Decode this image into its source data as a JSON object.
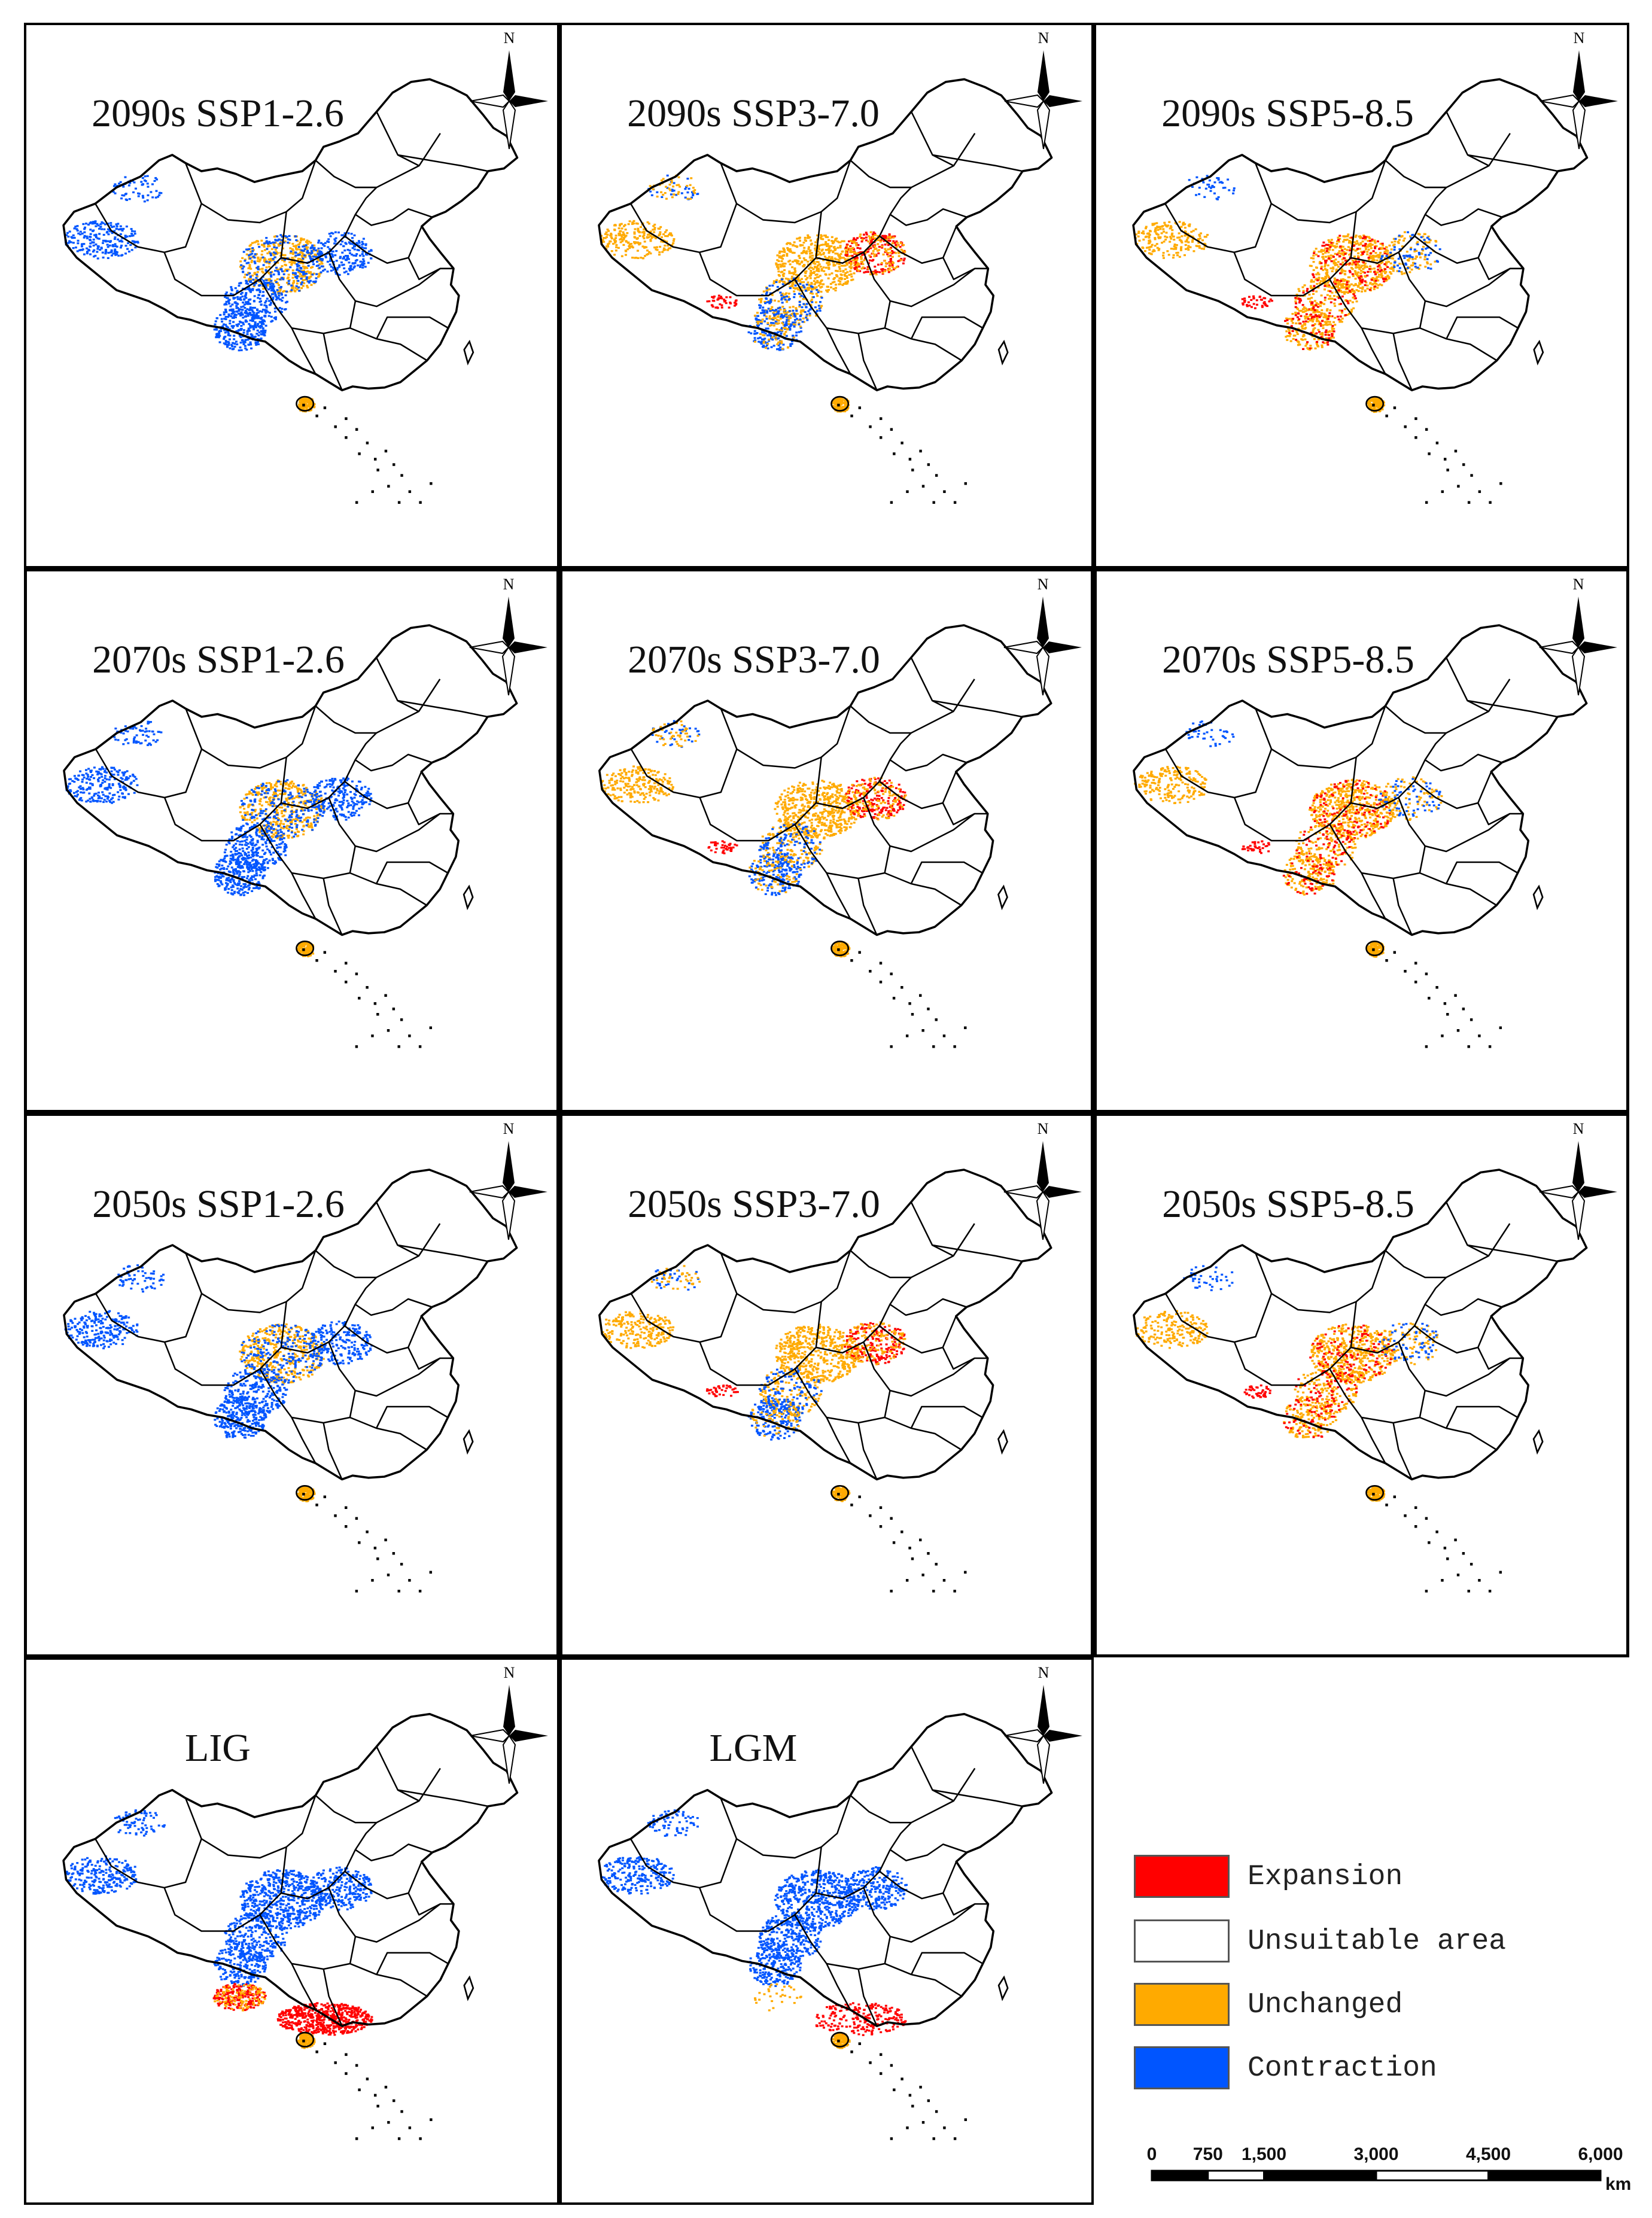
{
  "panels": [
    {
      "id": "2090s-ssp1-26",
      "title": "2090s SSP1-2.6",
      "scenario": "ssp1"
    },
    {
      "id": "2090s-ssp3-70",
      "title": "2090s SSP3-7.0",
      "scenario": "ssp3"
    },
    {
      "id": "2090s-ssp5-85",
      "title": "2090s SSP5-8.5",
      "scenario": "ssp5"
    },
    {
      "id": "2070s-ssp1-26",
      "title": "2070s SSP1-2.6",
      "scenario": "ssp1"
    },
    {
      "id": "2070s-ssp3-70",
      "title": "2070s SSP3-7.0",
      "scenario": "ssp3"
    },
    {
      "id": "2070s-ssp5-85",
      "title": "2070s SSP5-8.5",
      "scenario": "ssp5"
    },
    {
      "id": "2050s-ssp1-26",
      "title": "2050s SSP1-2.6",
      "scenario": "ssp1"
    },
    {
      "id": "2050s-ssp3-70",
      "title": "2050s SSP3-7.0",
      "scenario": "ssp3"
    },
    {
      "id": "2050s-ssp5-85",
      "title": "2050s SSP5-8.5",
      "scenario": "ssp5"
    },
    {
      "id": "lig",
      "title": "LIG",
      "scenario": "lig"
    },
    {
      "id": "lgm",
      "title": "LGM",
      "scenario": "lgm"
    }
  ],
  "north_label": "N",
  "legend": [
    {
      "label": "Expansion",
      "color": "#ff0000"
    },
    {
      "label": "Unsuitable area",
      "color": "#ffffff"
    },
    {
      "label": "Unchanged",
      "color": "#ffaa00"
    },
    {
      "label": "Contraction",
      "color": "#0055ff"
    }
  ],
  "scale_bar": {
    "ticks": [
      "0",
      "750",
      "1,500",
      "3,000",
      "4,500",
      "6,000"
    ],
    "unit": "km"
  },
  "colors": {
    "expansion": "#ff0000",
    "unchanged": "#ffaa00",
    "contraction": "#0055ff",
    "border": "#000000"
  }
}
